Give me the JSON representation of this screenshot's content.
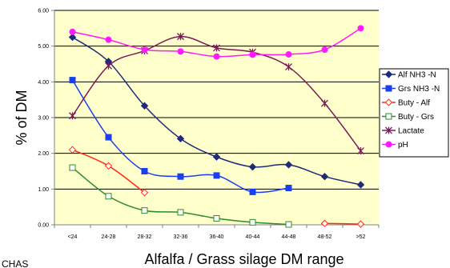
{
  "chart_data": {
    "type": "line",
    "ylabel": "% of DM",
    "xlabel": "Alfalfa / Grass silage DM range",
    "ylim": [
      0,
      6
    ],
    "yticks": [
      "0.00",
      "1.00",
      "2.00",
      "3.00",
      "4.00",
      "5.00",
      "6.00"
    ],
    "grid": "horizontal major gridlines",
    "legend_position": "right",
    "categories": [
      "<24",
      "24-28",
      "28-32",
      "32-36",
      "36-40",
      "40-44",
      "44-48",
      "48-52",
      ">52"
    ],
    "series": [
      {
        "name": "Alf NH3 -N",
        "color": "#1f2a7a",
        "marker": "diamond",
        "fill": true,
        "values": [
          5.25,
          4.57,
          3.33,
          2.41,
          1.9,
          1.62,
          1.68,
          1.35,
          1.12
        ]
      },
      {
        "name": "Grs NH3 -N",
        "color": "#1a3ff0",
        "marker": "square",
        "fill": true,
        "values": [
          4.05,
          2.45,
          1.5,
          1.35,
          1.38,
          0.92,
          1.03,
          null,
          null
        ]
      },
      {
        "name": "Buty - Alf",
        "color": "#ff2a1a",
        "marker": "diamond",
        "fill": false,
        "values": [
          2.1,
          1.65,
          0.9,
          null,
          null,
          null,
          null,
          0.04,
          0.02
        ]
      },
      {
        "name": "Buty - Grs",
        "color": "#2e8b2e",
        "marker": "square",
        "fill": false,
        "values": [
          1.6,
          0.8,
          0.4,
          0.35,
          0.18,
          0.07,
          0.01,
          null,
          null
        ]
      },
      {
        "name": "Lactate",
        "color": "#7a1a5a",
        "marker": "star",
        "fill": false,
        "values": [
          3.05,
          4.45,
          4.87,
          5.27,
          4.95,
          4.83,
          4.42,
          3.4,
          2.07
        ]
      },
      {
        "name": "pH",
        "color": "#ff1aff",
        "marker": "circle",
        "fill": true,
        "values": [
          5.4,
          5.18,
          4.9,
          4.85,
          4.71,
          4.76,
          4.77,
          4.9,
          5.5
        ]
      }
    ]
  },
  "footer_text": "CHAS"
}
